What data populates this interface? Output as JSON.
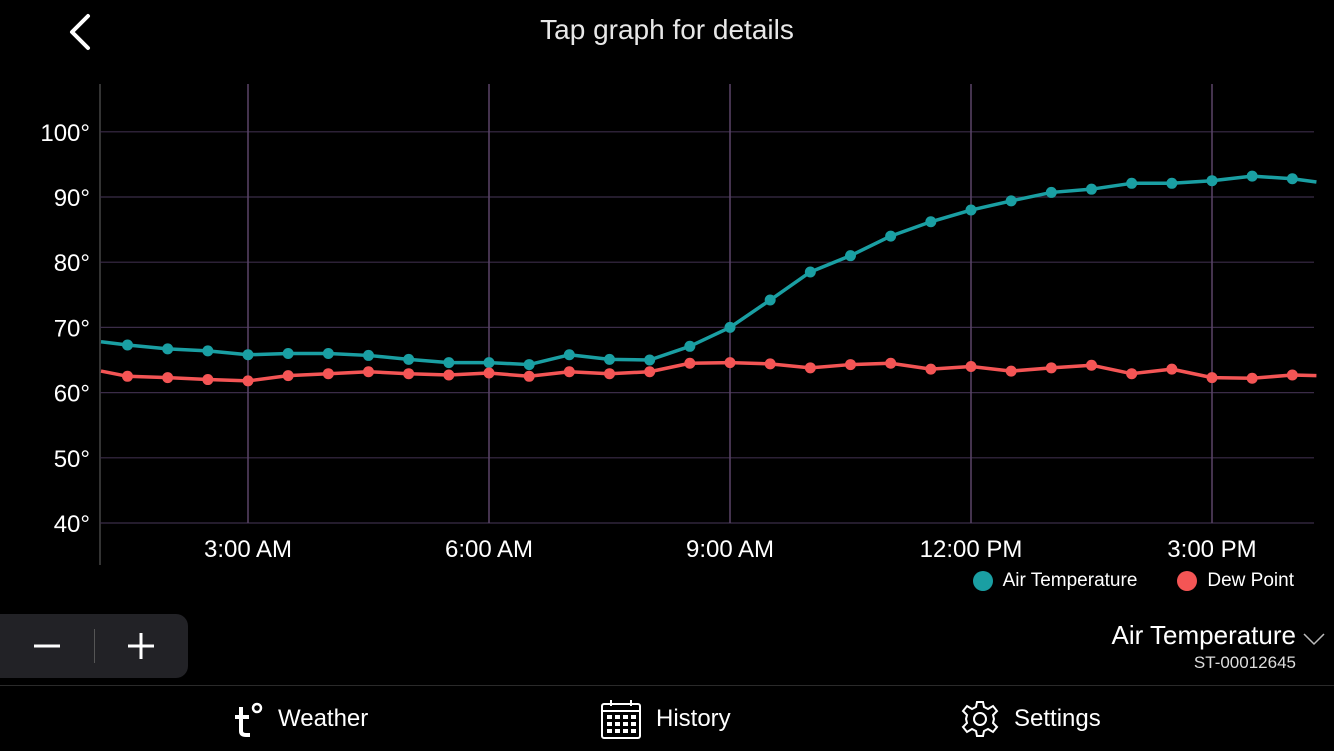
{
  "header": {
    "title": "Tap graph for details"
  },
  "chart_data": {
    "type": "line",
    "ylim": [
      40,
      100
    ],
    "y_ticks": [
      "100°",
      "90°",
      "80°",
      "70°",
      "60°",
      "50°",
      "40°"
    ],
    "y_tick_values": [
      100,
      90,
      80,
      70,
      60,
      50,
      40
    ],
    "x_ticks": [
      "3:00 AM",
      "6:00 AM",
      "9:00 AM",
      "12:00 PM",
      "3:00 PM"
    ],
    "x_tick_hours": [
      3,
      6,
      9,
      12,
      15
    ],
    "xlim_hours": [
      1.17,
      16.3
    ],
    "grid": true,
    "series": [
      {
        "name": "Air Temperature",
        "color": "#1a9fa3",
        "x_hours": [
          1.17,
          1.5,
          2.0,
          2.5,
          3.0,
          3.5,
          4.0,
          4.5,
          5.0,
          5.5,
          6.0,
          6.5,
          7.0,
          7.5,
          8.0,
          8.5,
          9.0,
          9.5,
          10.0,
          10.5,
          11.0,
          11.5,
          12.0,
          12.5,
          13.0,
          13.5,
          14.0,
          14.5,
          15.0,
          15.5,
          16.0,
          16.3
        ],
        "values": [
          67.8,
          67.3,
          66.7,
          66.4,
          65.8,
          66.0,
          66.0,
          65.7,
          65.1,
          64.6,
          64.6,
          64.3,
          65.8,
          65.1,
          65.0,
          67.1,
          70.0,
          74.2,
          78.5,
          81.0,
          84.0,
          86.2,
          88.0,
          89.4,
          90.7,
          91.2,
          92.1,
          92.1,
          92.5,
          93.2,
          92.8,
          92.3
        ]
      },
      {
        "name": "Dew Point",
        "color": "#f45555",
        "x_hours": [
          1.17,
          1.5,
          2.0,
          2.5,
          3.0,
          3.5,
          4.0,
          4.5,
          5.0,
          5.5,
          6.0,
          6.5,
          7.0,
          7.5,
          8.0,
          8.5,
          9.0,
          9.5,
          10.0,
          10.5,
          11.0,
          11.5,
          12.0,
          12.5,
          13.0,
          13.5,
          14.0,
          14.5,
          15.0,
          15.5,
          16.0,
          16.3
        ],
        "values": [
          63.3,
          62.5,
          62.3,
          62.0,
          61.8,
          62.6,
          62.9,
          63.2,
          62.9,
          62.7,
          63.0,
          62.5,
          63.2,
          62.9,
          63.2,
          64.5,
          64.6,
          64.4,
          63.8,
          64.3,
          64.5,
          63.6,
          64.0,
          63.3,
          63.8,
          64.2,
          62.9,
          63.6,
          62.3,
          62.2,
          62.7,
          62.6
        ]
      }
    ]
  },
  "legend": [
    {
      "label": "Air Temperature",
      "color": "#1a9fa3"
    },
    {
      "label": "Dew Point",
      "color": "#f45555"
    }
  ],
  "zoom": {
    "minus": "−",
    "plus": "+"
  },
  "metric_selector": {
    "label": "Air Temperature",
    "station_id": "ST-00012645"
  },
  "nav": {
    "weather": "Weather",
    "history": "History",
    "settings": "Settings"
  },
  "icons": {
    "back": "chevron-left-icon",
    "dropdown": "chevron-down-icon",
    "weather": "tempest-logo-icon",
    "history": "calendar-icon",
    "settings": "gear-icon"
  }
}
